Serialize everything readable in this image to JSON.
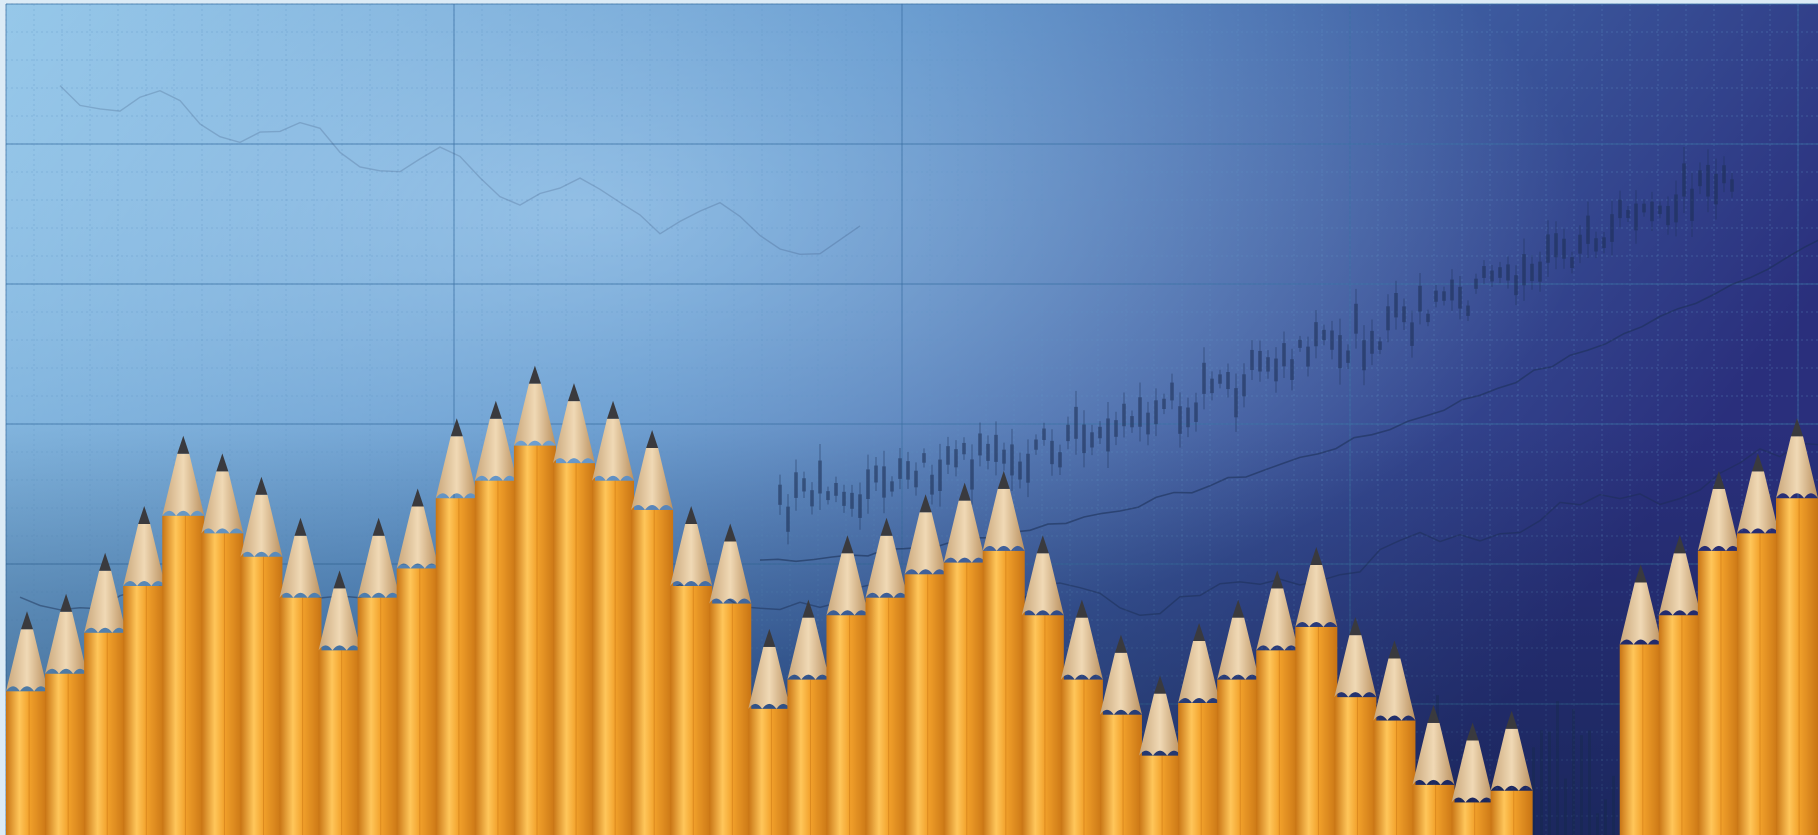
{
  "image": {
    "subject": "pencils-over-stock-chart",
    "palette": {
      "background_light": "#8fc3e6",
      "background_mid": "#4f86c2",
      "background_dark": "#2a2f7c",
      "frame": "#dcebf6",
      "grid_major": "#3b6fa3",
      "grid_minor": "#5f95c6",
      "chart_line": "#1c2f55",
      "pencil_body": "#f2a12b",
      "pencil_body_shadow": "#c87414",
      "pencil_body_highlight": "#ffc65a",
      "pencil_wood": "#e6c9a2",
      "pencil_graphite": "#3a3a3e"
    },
    "icons": [
      "pencil-icon",
      "stock-chart-icon"
    ]
  },
  "pencils": {
    "heights": [
      0.22,
      0.25,
      0.32,
      0.4,
      0.52,
      0.49,
      0.45,
      0.38,
      0.29,
      0.38,
      0.43,
      0.55,
      0.58,
      0.64,
      0.61,
      0.58,
      0.53,
      0.4,
      0.37,
      0.19,
      0.24,
      0.35,
      0.38,
      0.42,
      0.44,
      0.46,
      0.35,
      0.24,
      0.18,
      0.11,
      0.2,
      0.24,
      0.29,
      0.33,
      0.21,
      0.17,
      0.06,
      0.03,
      0.05,
      0.3,
      0.35,
      0.46,
      0.49,
      0.55
    ],
    "gap_after_index": 38
  }
}
